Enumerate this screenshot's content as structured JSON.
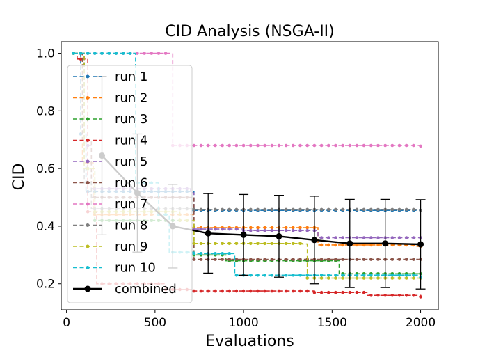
{
  "chart_data": {
    "type": "line",
    "title": "CID Analysis (NSGA-II)",
    "xlabel": "Evaluations",
    "ylabel": "CID",
    "xlim": [
      -30,
      2100
    ],
    "ylim": [
      0.11,
      1.04
    ],
    "xticks": [
      0,
      500,
      1000,
      1500,
      2000
    ],
    "yticks": [
      0.2,
      0.4,
      0.6,
      0.8,
      1.0
    ],
    "xtick_labels": [
      "0",
      "500",
      "1000",
      "1500",
      "2000"
    ],
    "ytick_labels": [
      "0.2",
      "0.4",
      "0.6",
      "0.8",
      "1.0"
    ],
    "grid": false,
    "legend_position": "upper-left",
    "series": [
      {
        "name": "run 1",
        "color": "#1f77b4",
        "style": "dashed",
        "steps": [
          [
            40,
            1.0
          ],
          [
            80,
            0.72
          ],
          [
            110,
            0.52
          ],
          [
            720,
            0.455
          ],
          [
            2000,
            0.455
          ]
        ]
      },
      {
        "name": "run 2",
        "color": "#ff7f0e",
        "style": "dashed",
        "steps": [
          [
            40,
            1.0
          ],
          [
            90,
            0.62
          ],
          [
            150,
            0.44
          ],
          [
            720,
            0.395
          ],
          [
            1420,
            0.335
          ],
          [
            1980,
            0.33
          ],
          [
            2000,
            0.33
          ]
        ]
      },
      {
        "name": "run 3",
        "color": "#2ca02c",
        "style": "dashed",
        "steps": [
          [
            40,
            1.0
          ],
          [
            100,
            0.6
          ],
          [
            160,
            0.42
          ],
          [
            720,
            0.3
          ],
          [
            900,
            0.28
          ],
          [
            1540,
            0.235
          ],
          [
            2000,
            0.235
          ]
        ]
      },
      {
        "name": "run 4",
        "color": "#d62728",
        "style": "dashed",
        "steps": [
          [
            40,
            1.0
          ],
          [
            60,
            0.98
          ],
          [
            120,
            0.45
          ],
          [
            170,
            0.2
          ],
          [
            560,
            0.18
          ],
          [
            720,
            0.175
          ],
          [
            1400,
            0.17
          ],
          [
            1700,
            0.16
          ],
          [
            2000,
            0.155
          ]
        ]
      },
      {
        "name": "run 5",
        "color": "#9467bd",
        "style": "dashed",
        "steps": [
          [
            40,
            1.0
          ],
          [
            100,
            0.68
          ],
          [
            140,
            0.53
          ],
          [
            700,
            0.515
          ],
          [
            720,
            0.39
          ],
          [
            1000,
            0.385
          ],
          [
            1420,
            0.36
          ],
          [
            2000,
            0.36
          ]
        ]
      },
      {
        "name": "run 6",
        "color": "#8c564b",
        "style": "dashed",
        "steps": [
          [
            40,
            1.0
          ],
          [
            90,
            0.7
          ],
          [
            140,
            0.5
          ],
          [
            720,
            0.285
          ],
          [
            2000,
            0.285
          ]
        ]
      },
      {
        "name": "run 7",
        "color": "#e377c2",
        "style": "dashed",
        "steps": [
          [
            40,
            1.0
          ],
          [
            580,
            1.0
          ],
          [
            600,
            0.68
          ],
          [
            2000,
            0.678
          ]
        ]
      },
      {
        "name": "run 8",
        "color": "#7f7f7f",
        "style": "dashed",
        "steps": [
          [
            40,
            1.0
          ],
          [
            100,
            0.55
          ],
          [
            140,
            0.46
          ],
          [
            720,
            0.458
          ],
          [
            2000,
            0.455
          ]
        ]
      },
      {
        "name": "run 9",
        "color": "#bcbd22",
        "style": "dashed",
        "steps": [
          [
            40,
            1.0
          ],
          [
            100,
            0.6
          ],
          [
            160,
            0.45
          ],
          [
            640,
            0.42
          ],
          [
            720,
            0.34
          ],
          [
            1330,
            0.338
          ],
          [
            1360,
            0.22
          ],
          [
            2000,
            0.22
          ]
        ]
      },
      {
        "name": "run 10",
        "color": "#17becf",
        "style": "dashed",
        "steps": [
          [
            40,
            1.0
          ],
          [
            370,
            1.0
          ],
          [
            390,
            0.55
          ],
          [
            520,
            0.44
          ],
          [
            580,
            0.31
          ],
          [
            720,
            0.305
          ],
          [
            950,
            0.23
          ],
          [
            2000,
            0.222
          ]
        ]
      },
      {
        "name": "combined",
        "color": "#000000",
        "style": "solid",
        "x": [
          200,
          400,
          600,
          800,
          1000,
          1200,
          1400,
          1600,
          1800,
          2000
        ],
        "y": [
          0.645,
          0.515,
          0.4,
          0.375,
          0.37,
          0.365,
          0.352,
          0.34,
          0.34,
          0.337
        ],
        "err": [
          0.275,
          0.205,
          0.145,
          0.138,
          0.14,
          0.142,
          0.152,
          0.153,
          0.153,
          0.155
        ]
      }
    ]
  }
}
